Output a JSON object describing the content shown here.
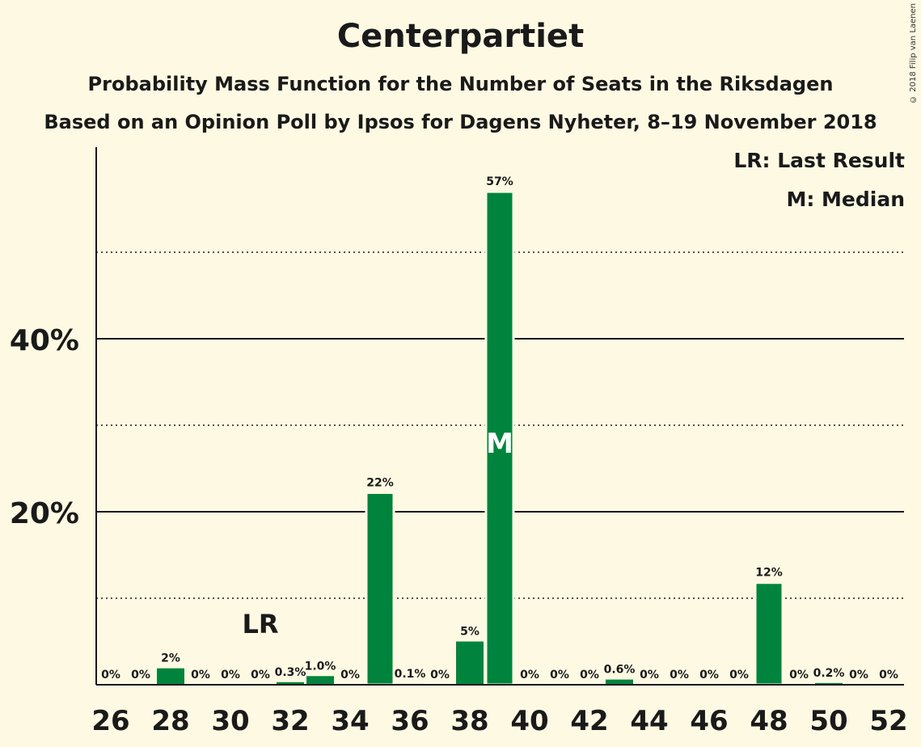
{
  "title": "Centerpartiet",
  "subtitle": "Probability Mass Function for the Number of Seats in the Riksdagen",
  "subtitle2": "Based on an Opinion Poll by Ipsos for Dagens Nyheter, 8–19 November 2018",
  "copyright": "© 2018 Filip van Laenen",
  "legend": {
    "last_result": "LR: Last Result",
    "median": "M: Median"
  },
  "colors": {
    "background": "#fef9e3",
    "bar": "#00843d",
    "text": "#1a1a1a"
  },
  "chart_data": {
    "type": "bar",
    "categories": [
      26,
      27,
      28,
      29,
      30,
      31,
      32,
      33,
      34,
      35,
      36,
      37,
      38,
      39,
      40,
      41,
      42,
      43,
      44,
      45,
      46,
      47,
      48,
      49,
      50,
      51,
      52
    ],
    "values": [
      0,
      0,
      1.9,
      0,
      0,
      0,
      0.3,
      1.0,
      0,
      22.2,
      0.1,
      0,
      5.0,
      57.0,
      0,
      0,
      0,
      0.6,
      0,
      0,
      0,
      0,
      11.8,
      0,
      0.2,
      0,
      0
    ],
    "value_labels": [
      "0%",
      "0%",
      "2%",
      "0%",
      "0%",
      "0%",
      "0.3%",
      "1.0%",
      "0%",
      "22%",
      "0.1%",
      "0%",
      "5%",
      "57%",
      "0%",
      "0%",
      "0%",
      "0.6%",
      "0%",
      "0%",
      "0%",
      "0%",
      "12%",
      "0%",
      "0.2%",
      "0%",
      "0%"
    ],
    "x_tick_labels": [
      "26",
      "28",
      "30",
      "32",
      "34",
      "36",
      "38",
      "40",
      "42",
      "44",
      "46",
      "48",
      "50",
      "52"
    ],
    "y_tick_labels": [
      "20%",
      "40%"
    ],
    "ylim": [
      0,
      62
    ],
    "major_gridlines": [
      20,
      40
    ],
    "minor_gridlines": [
      10,
      30,
      50
    ],
    "last_result": {
      "seat": 31,
      "label": "LR"
    },
    "median": {
      "seat": 39,
      "label": "M"
    }
  }
}
